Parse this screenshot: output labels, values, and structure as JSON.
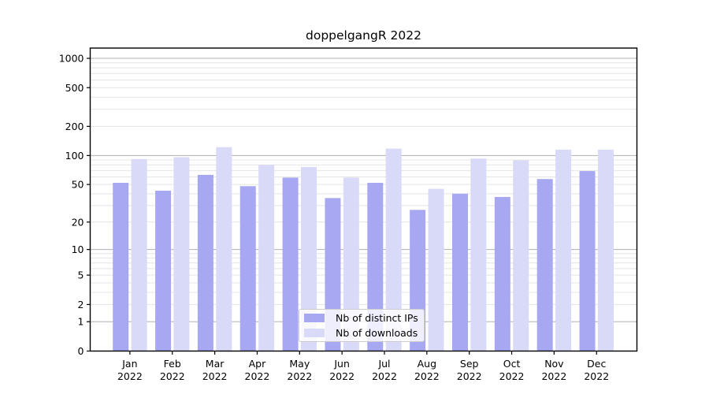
{
  "title": "doppelgangR 2022",
  "chart_data": {
    "type": "bar",
    "title": "doppelgangR 2022",
    "categories": [
      "Jan 2022",
      "Feb 2022",
      "Mar 2022",
      "Apr 2022",
      "May 2022",
      "Jun 2022",
      "Jul 2022",
      "Aug 2022",
      "Sep 2022",
      "Oct 2022",
      "Nov 2022",
      "Dec 2022"
    ],
    "series": [
      {
        "name": "Nb of distinct IPs",
        "color": "#a8a8f2",
        "values": [
          52,
          43,
          63,
          48,
          59,
          36,
          52,
          27,
          40,
          37,
          57,
          69
        ]
      },
      {
        "name": "Nb of downloads",
        "color": "#d9d9f8",
        "values": [
          92,
          96,
          122,
          80,
          76,
          59,
          118,
          45,
          93,
          89,
          115,
          115
        ]
      }
    ],
    "yscale": "log1p",
    "yticks": [
      0,
      1,
      2,
      5,
      10,
      20,
      50,
      100,
      200,
      500,
      1000
    ],
    "ylim": [
      0,
      1274
    ],
    "xlabel": "",
    "ylabel": "",
    "grid": "both",
    "legend_position": "bottom-center-inside",
    "colors": {
      "grid_major": "#b0b0b0",
      "grid_minor": "#e4e4e4",
      "axis": "#000000",
      "legend_border": "#cccccc",
      "tick_label": "#000000"
    }
  }
}
